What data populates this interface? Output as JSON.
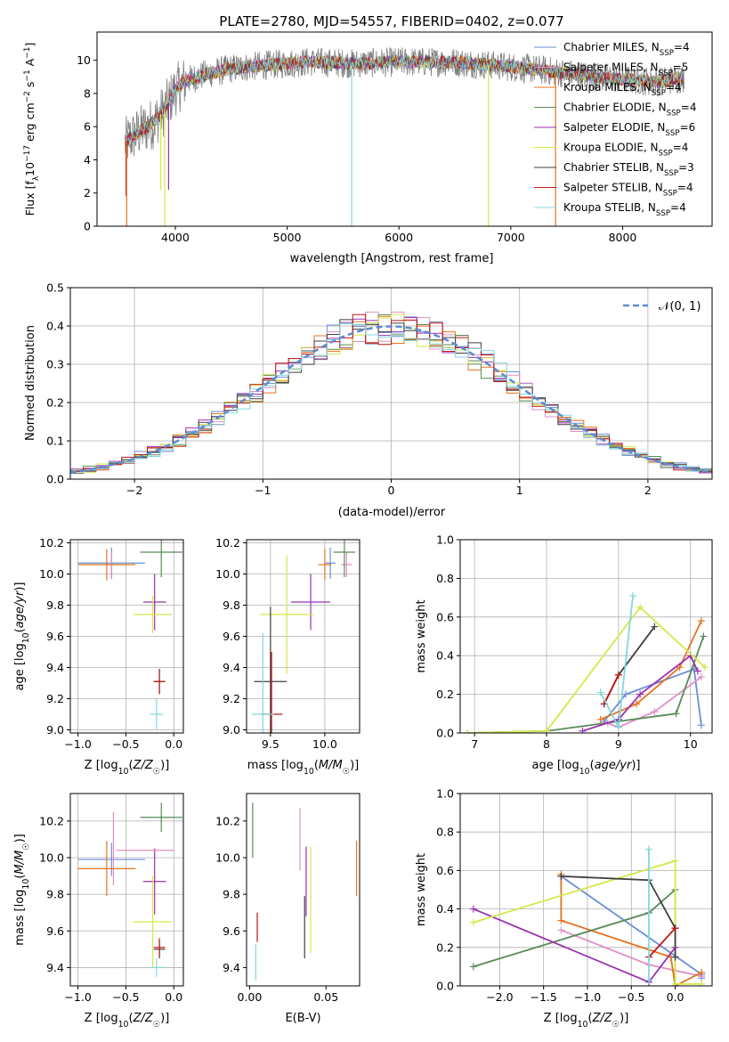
{
  "figure": {
    "title": "PLATE=2780, MJD=54557, FIBERID=0402, z=0.077"
  },
  "colors": {
    "Chabrier MILES": "#6a8fd6",
    "Salpeter MILES": "#e08fc6",
    "Kroupa MILES": "#e5731f",
    "Chabrier ELODIE": "#5a8a5a",
    "Salpeter ELODIE": "#9b30b0",
    "Kroupa ELODIE": "#d6e84a",
    "Chabrier STELIB": "#404040",
    "Salpeter STELIB": "#c01515",
    "Kroupa STELIB": "#80d8e0",
    "data": "#808080",
    "normal": "#5b8bd4",
    "grid": "#b0b0b0"
  },
  "chart_data": [
    {
      "id": "spectrum",
      "type": "line",
      "xlabel": "wavelength [Angstrom, rest frame]",
      "ylabel": "Flux [f_λ10^-17 erg cm^-2 s^-1 A^-1]",
      "xlim": [
        3300,
        8800
      ],
      "ylim": [
        0,
        11.7
      ],
      "xticks": [
        4000,
        5000,
        6000,
        7000,
        8000
      ],
      "yticks": [
        0,
        2,
        4,
        6,
        8,
        10
      ],
      "grid": false,
      "legend_position": "right",
      "series": [
        {
          "name": "Chabrier MILES, N_SSP=4",
          "key": "Chabrier MILES"
        },
        {
          "name": "Salpeter MILES, N_SSP=5",
          "key": "Salpeter MILES"
        },
        {
          "name": "Kroupa MILES, N_SSP=4",
          "key": "Kroupa MILES"
        },
        {
          "name": "Chabrier ELODIE, N_SSP=4",
          "key": "Chabrier ELODIE"
        },
        {
          "name": "Salpeter ELODIE, N_SSP=6",
          "key": "Salpeter ELODIE"
        },
        {
          "name": "Kroupa ELODIE, N_SSP=4",
          "key": "Kroupa ELODIE"
        },
        {
          "name": "Chabrier STELIB, N_SSP=3",
          "key": "Chabrier STELIB"
        },
        {
          "name": "Salpeter STELIB, N_SSP=4",
          "key": "Salpeter STELIB"
        },
        {
          "name": "Kroupa STELIB, N_SSP=4",
          "key": "Kroupa STELIB"
        }
      ],
      "continuum": {
        "x": [
          3550,
          3600,
          3700,
          3800,
          3900,
          4000,
          4100,
          4300,
          4500,
          4800,
          5200,
          5600,
          6000,
          6500,
          7000,
          7300,
          7500,
          7900,
          8300,
          8500
        ],
        "y": [
          5.0,
          5.3,
          5.8,
          6.2,
          7.0,
          8.2,
          8.8,
          9.2,
          9.5,
          9.7,
          9.9,
          9.8,
          9.9,
          9.9,
          9.6,
          9.4,
          9.2,
          8.9,
          8.7,
          8.9
        ]
      },
      "dips": [
        {
          "x": 3560,
          "y": 1.8,
          "key": "Salpeter STELIB"
        },
        {
          "x": 3565,
          "y": 0.0,
          "key": "Kroupa MILES"
        },
        {
          "x": 3870,
          "y": 2.2,
          "key": "Kroupa ELODIE"
        },
        {
          "x": 3905,
          "y": 0.0,
          "key": "Kroupa ELODIE"
        },
        {
          "x": 3940,
          "y": 2.2,
          "key": "Salpeter ELODIE"
        },
        {
          "x": 5577,
          "y": 0.0,
          "key": "Kroupa STELIB"
        },
        {
          "x": 6800,
          "y": 0.0,
          "key": "Kroupa ELODIE"
        },
        {
          "x": 7400,
          "y": 0.0,
          "key": "Kroupa MILES"
        }
      ]
    },
    {
      "id": "residuals",
      "type": "bar",
      "xlabel": "(data-model)/error",
      "ylabel": "Normed distribution",
      "xlim": [
        -2.5,
        2.5
      ],
      "ylim": [
        0,
        0.5
      ],
      "xticks": [
        -2,
        -1,
        0,
        1,
        2
      ],
      "yticks": [
        0.0,
        0.1,
        0.2,
        0.3,
        0.4,
        0.5
      ],
      "grid": true,
      "legend": "𝒩(0, 1)",
      "legend_position": "top-right",
      "bin_width": 0.1,
      "bin_start": -2.5,
      "histograms_key_order": [
        "Chabrier MILES",
        "Salpeter MILES",
        "Kroupa MILES",
        "Chabrier ELODIE",
        "Salpeter ELODIE",
        "Kroupa ELODIE",
        "Chabrier STELIB",
        "Salpeter STELIB",
        "Kroupa STELIB"
      ],
      "normal_curve": {
        "mu": 0,
        "sigma": 1
      }
    },
    {
      "id": "age-vs-Z",
      "type": "scatter",
      "xlabel": "Z [log10(Z/Z☉)]",
      "ylabel": "age  [log10(age/yr)]",
      "xlim": [
        -1.08,
        0.1
      ],
      "ylim": [
        8.98,
        10.22
      ],
      "xticks": [
        -1.0,
        -0.5,
        0.0
      ],
      "yticks": [
        9.0,
        9.2,
        9.4,
        9.6,
        9.8,
        10.0,
        10.2
      ],
      "grid": true,
      "errorbars": [
        {
          "key": "Chabrier MILES",
          "x": -0.65,
          "xerr": 0.35,
          "y": 10.07,
          "yerr": 0.1
        },
        {
          "key": "Salpeter MILES",
          "x": -0.65,
          "xerr": 0.05,
          "y": 10.06,
          "yerr": 0.08
        },
        {
          "key": "Kroupa MILES",
          "x": -0.7,
          "xerr": 0.3,
          "y": 10.06,
          "yerr": 0.1
        },
        {
          "key": "Chabrier ELODIE",
          "x": -0.13,
          "xerr": 0.22,
          "y": 10.14,
          "yerr": 0.16
        },
        {
          "key": "Salpeter ELODIE",
          "x": -0.2,
          "xerr": 0.12,
          "y": 9.82,
          "yerr": 0.18
        },
        {
          "key": "Kroupa ELODIE",
          "x": -0.22,
          "xerr": 0.2,
          "y": 9.74,
          "yerr": 0.12
        },
        {
          "key": "Chabrier STELIB",
          "x": -0.15,
          "xerr": 0.06,
          "y": 9.31,
          "yerr": 0.08
        },
        {
          "key": "Salpeter STELIB",
          "x": -0.15,
          "xerr": 0.06,
          "y": 9.31,
          "yerr": 0.08
        },
        {
          "key": "Kroupa STELIB",
          "x": -0.18,
          "xerr": 0.07,
          "y": 9.1,
          "yerr": 0.1
        }
      ]
    },
    {
      "id": "age-vs-mass",
      "type": "scatter",
      "xlabel": "mass [log10(M/M☉)]",
      "ylabel": "",
      "xlim": [
        9.28,
        10.32
      ],
      "ylim": [
        8.98,
        10.22
      ],
      "xticks": [
        9.5,
        10.0
      ],
      "yticks": [
        9.0,
        9.2,
        9.4,
        9.6,
        9.8,
        10.0,
        10.2
      ],
      "grid": true,
      "errorbars": [
        {
          "key": "Chabrier MILES",
          "x": 10.05,
          "xerr": 0.05,
          "y": 10.07,
          "yerr": 0.1
        },
        {
          "key": "Salpeter MILES",
          "x": 10.2,
          "xerr": 0.05,
          "y": 10.06,
          "yerr": 0.08
        },
        {
          "key": "Kroupa MILES",
          "x": 10.0,
          "xerr": 0.06,
          "y": 10.06,
          "yerr": 0.1
        },
        {
          "key": "Chabrier ELODIE",
          "x": 10.18,
          "xerr": 0.1,
          "y": 10.14,
          "yerr": 0.16
        },
        {
          "key": "Salpeter ELODIE",
          "x": 9.87,
          "xerr": 0.18,
          "y": 9.82,
          "yerr": 0.18
        },
        {
          "key": "Kroupa ELODIE",
          "x": 9.65,
          "xerr": 0.25,
          "y": 9.74,
          "yerr": 0.38
        },
        {
          "key": "Chabrier STELIB",
          "x": 9.5,
          "xerr": 0.15,
          "y": 9.31,
          "yerr": 0.48
        },
        {
          "key": "Salpeter STELIB",
          "x": 9.51,
          "xerr": 0.1,
          "y": 9.1,
          "yerr": 0.4
        },
        {
          "key": "Kroupa STELIB",
          "x": 9.43,
          "xerr": 0.1,
          "y": 9.1,
          "yerr": 0.52
        }
      ]
    },
    {
      "id": "weight-vs-age",
      "type": "line",
      "xlabel": "age  [log10(age/yr)]",
      "ylabel": "mass weight",
      "xlim": [
        6.8,
        10.3
      ],
      "ylim": [
        0,
        1.0
      ],
      "xticks": [
        7,
        8,
        9,
        10
      ],
      "yticks": [
        0.0,
        0.2,
        0.4,
        0.6,
        0.8,
        1.0
      ],
      "grid": true,
      "series": [
        {
          "key": "Chabrier MILES",
          "x": [
            8.8,
            9.1,
            10.05,
            10.15
          ],
          "y": [
            0.06,
            0.2,
            0.33,
            0.04
          ]
        },
        {
          "key": "Salpeter MILES",
          "x": [
            8.85,
            9.0,
            9.5,
            10.15
          ],
          "y": [
            0.05,
            0.03,
            0.11,
            0.29
          ]
        },
        {
          "key": "Kroupa MILES",
          "x": [
            8.75,
            9.25,
            9.85,
            10.15
          ],
          "y": [
            0.07,
            0.15,
            0.34,
            0.58
          ]
        },
        {
          "key": "Chabrier ELODIE",
          "x": [
            6.9,
            8.0,
            9.8,
            10.18
          ],
          "y": [
            0.0,
            0.01,
            0.1,
            0.5
          ]
        },
        {
          "key": "Salpeter ELODIE",
          "x": [
            8.5,
            9.0,
            9.3,
            10.0,
            10.1
          ],
          "y": [
            0.01,
            0.07,
            0.2,
            0.4,
            0.32
          ]
        },
        {
          "key": "Kroupa ELODIE",
          "x": [
            6.9,
            8.0,
            9.3,
            10.2
          ],
          "y": [
            0.0,
            0.01,
            0.65,
            0.34
          ]
        },
        {
          "key": "Chabrier STELIB",
          "x": [
            8.8,
            9.0,
            9.5
          ],
          "y": [
            0.15,
            0.3,
            0.55
          ]
        },
        {
          "key": "Salpeter STELIB",
          "x": [
            8.8,
            9.0
          ],
          "y": [
            0.15,
            0.3
          ]
        },
        {
          "key": "Kroupa STELIB",
          "x": [
            8.75,
            9.0,
            9.2
          ],
          "y": [
            0.21,
            0.03,
            0.71
          ]
        }
      ]
    },
    {
      "id": "mass-vs-Z",
      "type": "scatter",
      "xlabel": "Z [log10(Z/Z☉)]",
      "ylabel": "mass [log10(M/M☉)]",
      "xlim": [
        -1.08,
        0.1
      ],
      "ylim": [
        9.3,
        10.35
      ],
      "xticks": [
        -1.0,
        -0.5,
        0.0
      ],
      "yticks": [
        9.4,
        9.6,
        9.8,
        10.0,
        10.2
      ],
      "grid": true,
      "errorbars": [
        {
          "key": "Chabrier MILES",
          "x": -0.65,
          "xerr": 0.35,
          "y": 9.99,
          "yerr": 0.09
        },
        {
          "key": "Salpeter MILES",
          "x": -0.63,
          "xerr": 0.0,
          "y": 10.05,
          "yerr": 0.2
        },
        {
          "key": "Kroupa MILES",
          "x": -0.7,
          "xerr": 0.3,
          "y": 9.94,
          "yerr": 0.15
        },
        {
          "key": "Chabrier ELODIE",
          "x": -0.13,
          "xerr": 0.22,
          "y": 10.22,
          "yerr": 0.08
        },
        {
          "key": "Salpeter ELODIE",
          "x": -0.2,
          "xerr": 0.12,
          "y": 9.87,
          "yerr": 0.18
        },
        {
          "key": "Kroupa ELODIE",
          "x": -0.22,
          "xerr": 0.2,
          "y": 9.65,
          "yerr": 0.25
        },
        {
          "key": "Chabrier STELIB",
          "x": -0.15,
          "xerr": 0.06,
          "y": 9.5,
          "yerr": 0.05
        },
        {
          "key": "Salpeter STELIB",
          "x": -0.15,
          "xerr": 0.06,
          "y": 9.51,
          "yerr": 0.05
        },
        {
          "key": "Kroupa STELIB",
          "x": -0.18,
          "xerr": 0.07,
          "y": 9.4,
          "yerr": 0.05
        }
      ],
      "extra_errorbars": [
        {
          "key": "Salpeter MILES",
          "x": -0.3,
          "xerr": 0.3,
          "y": 10.04,
          "yerr": 0.0
        }
      ]
    },
    {
      "id": "mass-vs-ebv",
      "type": "scatter",
      "xlabel": "E(B-V)",
      "ylabel": "",
      "xlim": [
        -0.002,
        0.072
      ],
      "ylim": [
        9.3,
        10.35
      ],
      "xticks": [
        0.0,
        0.05
      ],
      "yticks": [
        9.4,
        9.6,
        9.8,
        10.0,
        10.2
      ],
      "grid": false,
      "errorbars": [
        {
          "key": "Chabrier ELODIE",
          "x": 0.002,
          "y": 10.15,
          "yerr": 0.15
        },
        {
          "key": "Salpeter MILES",
          "x": 0.033,
          "y": 10.1,
          "yerr": 0.17
        },
        {
          "key": "Salpeter ELODIE",
          "x": 0.037,
          "y": 9.87,
          "yerr": 0.19
        },
        {
          "key": "Kroupa ELODIE",
          "x": 0.04,
          "y": 9.77,
          "yerr": 0.29
        },
        {
          "key": "Chabrier STELIB",
          "x": 0.036,
          "y": 9.62,
          "yerr": 0.17
        },
        {
          "key": "Kroupa MILES",
          "x": 0.07,
          "y": 9.94,
          "yerr": 0.15
        },
        {
          "key": "Salpeter STELIB",
          "x": 0.005,
          "y": 9.62,
          "yerr": 0.08
        },
        {
          "key": "Kroupa STELIB",
          "x": 0.004,
          "y": 9.43,
          "yerr": 0.1
        }
      ]
    },
    {
      "id": "weight-vs-Z",
      "type": "line",
      "xlabel": "Z [log10(Z/Z☉)]",
      "ylabel": "mass weight",
      "xlim": [
        -2.45,
        0.42
      ],
      "ylim": [
        0,
        1.0
      ],
      "xticks": [
        -2.0,
        -1.5,
        -1.0,
        -0.5,
        0.0
      ],
      "yticks": [
        0.0,
        0.2,
        0.4,
        0.6,
        0.8,
        1.0
      ],
      "grid": true,
      "series": [
        {
          "key": "Chabrier MILES",
          "x": [
            -1.3,
            0.3,
            0.3
          ],
          "y": [
            0.57,
            0.06,
            0.04
          ]
        },
        {
          "key": "Salpeter MILES",
          "x": [
            -1.3,
            -0.3,
            0.3
          ],
          "y": [
            0.29,
            0.11,
            0.05
          ]
        },
        {
          "key": "Kroupa MILES",
          "x": [
            -1.3,
            -1.3,
            -0.05,
            0.0,
            0.3
          ],
          "y": [
            0.58,
            0.34,
            0.15,
            0.0,
            0.07
          ]
        },
        {
          "key": "Chabrier ELODIE",
          "x": [
            -2.3,
            -0.3,
            0.0,
            0.0
          ],
          "y": [
            0.1,
            0.38,
            0.5,
            0.0
          ]
        },
        {
          "key": "Salpeter ELODIE",
          "x": [
            -2.3,
            -0.3,
            0.0
          ],
          "y": [
            0.4,
            0.02,
            0.2
          ]
        },
        {
          "key": "Kroupa ELODIE",
          "x": [
            -2.3,
            0.0,
            0.0,
            0.3
          ],
          "y": [
            0.33,
            0.65,
            0.01,
            0.01
          ]
        },
        {
          "key": "Chabrier STELIB",
          "x": [
            -1.3,
            -0.3,
            0.0,
            0.0
          ],
          "y": [
            0.57,
            0.55,
            0.3,
            0.15
          ]
        },
        {
          "key": "Salpeter STELIB",
          "x": [
            -0.3,
            0.0
          ],
          "y": [
            0.15,
            0.3
          ]
        },
        {
          "key": "Kroupa STELIB",
          "x": [
            -0.3,
            -0.3
          ],
          "y": [
            0.03,
            0.71
          ]
        }
      ]
    }
  ]
}
